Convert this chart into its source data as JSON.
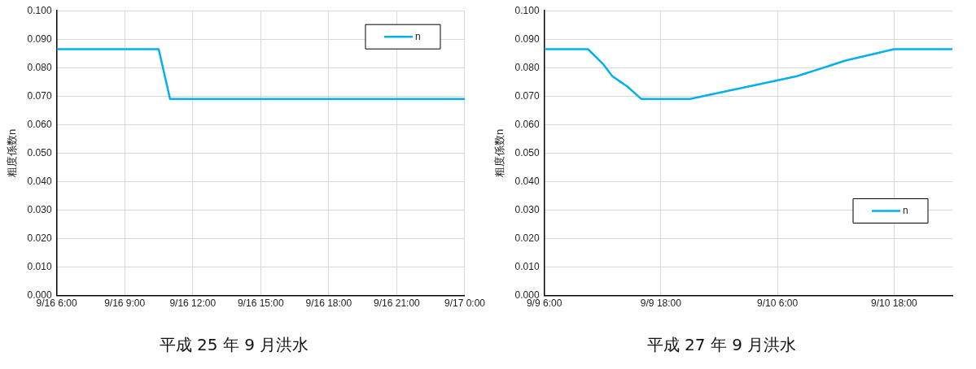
{
  "chart_data": [
    {
      "type": "line",
      "title": "平成 25 年 9 月洪水",
      "ylabel": "粗度係数n",
      "x": [
        "--09-16T06:00",
        "--09-16T10:30",
        "--09-16T11:00",
        "--09-17T00:00"
      ],
      "series": [
        {
          "name": "n",
          "color": "#00b0f0",
          "values": [
            0.0865,
            0.0865,
            0.069,
            0.069
          ]
        }
      ],
      "xlim": [
        "--09-16T06:00",
        "--09-17T00:00"
      ],
      "xticks": [
        {
          "value": "--09-16T06:00",
          "label": "9/16 6:00"
        },
        {
          "value": "--09-16T09:00",
          "label": "9/16 9:00"
        },
        {
          "value": "--09-16T12:00",
          "label": "9/16 12:00"
        },
        {
          "value": "--09-16T15:00",
          "label": "9/16 15:00"
        },
        {
          "value": "--09-16T18:00",
          "label": "9/16 18:00"
        },
        {
          "value": "--09-16T21:00",
          "label": "9/16 21:00"
        },
        {
          "value": "--09-17T00:00",
          "label": "9/17 0:00"
        }
      ],
      "ylim": [
        0,
        0.1
      ],
      "yticks": [
        {
          "value": 0,
          "label": "0.000"
        },
        {
          "value": 0.01,
          "label": "0.010"
        },
        {
          "value": 0.02,
          "label": "0.020"
        },
        {
          "value": 0.03,
          "label": "0.030"
        },
        {
          "value": 0.04,
          "label": "0.040"
        },
        {
          "value": 0.05,
          "label": "0.050"
        },
        {
          "value": 0.06,
          "label": "0.060"
        },
        {
          "value": 0.07,
          "label": "0.070"
        },
        {
          "value": 0.08,
          "label": "0.080"
        },
        {
          "value": 0.09,
          "label": "0.090"
        },
        {
          "value": 0.1,
          "label": "0.100"
        }
      ],
      "grid": true,
      "legend": "top right",
      "marker": "none",
      "line_style": "solid"
    },
    {
      "type": "line",
      "title": "平成 27 年 9 月洪水",
      "ylabel": "粗度係数n",
      "x": [
        "--09-09T06:00",
        "--09-09T10:30",
        "--09-09T12:00",
        "--09-09T13:00",
        "--09-09T14:30",
        "--09-09T16:00",
        "--09-09T21:00",
        "--09-10T08:00",
        "--09-10T13:00",
        "--09-10T18:00",
        "--09-11T00:00"
      ],
      "series": [
        {
          "name": "n",
          "color": "#00b0f0",
          "values": [
            0.0865,
            0.0865,
            0.0815,
            0.077,
            0.0735,
            0.069,
            0.069,
            0.077,
            0.0825,
            0.0865,
            0.0865
          ]
        }
      ],
      "xlim": [
        "--09-09T06:00",
        "--09-11T00:00"
      ],
      "xticks": [
        {
          "value": "--09-09T06:00",
          "label": "9/9 6:00"
        },
        {
          "value": "--09-09T18:00",
          "label": "9/9 18:00"
        },
        {
          "value": "--09-10T06:00",
          "label": "9/10 6:00"
        },
        {
          "value": "--09-10T18:00",
          "label": "9/10 18:00"
        }
      ],
      "ylim": [
        0,
        0.1
      ],
      "yticks": [
        {
          "value": 0,
          "label": "0.000"
        },
        {
          "value": 0.01,
          "label": "0.010"
        },
        {
          "value": 0.02,
          "label": "0.020"
        },
        {
          "value": 0.03,
          "label": "0.030"
        },
        {
          "value": 0.04,
          "label": "0.040"
        },
        {
          "value": 0.05,
          "label": "0.050"
        },
        {
          "value": 0.06,
          "label": "0.060"
        },
        {
          "value": 0.07,
          "label": "0.070"
        },
        {
          "value": 0.08,
          "label": "0.080"
        },
        {
          "value": 0.09,
          "label": "0.090"
        },
        {
          "value": 0.1,
          "label": "0.100"
        }
      ],
      "grid": true,
      "legend": "right",
      "marker": "none",
      "line_style": "solid"
    }
  ]
}
